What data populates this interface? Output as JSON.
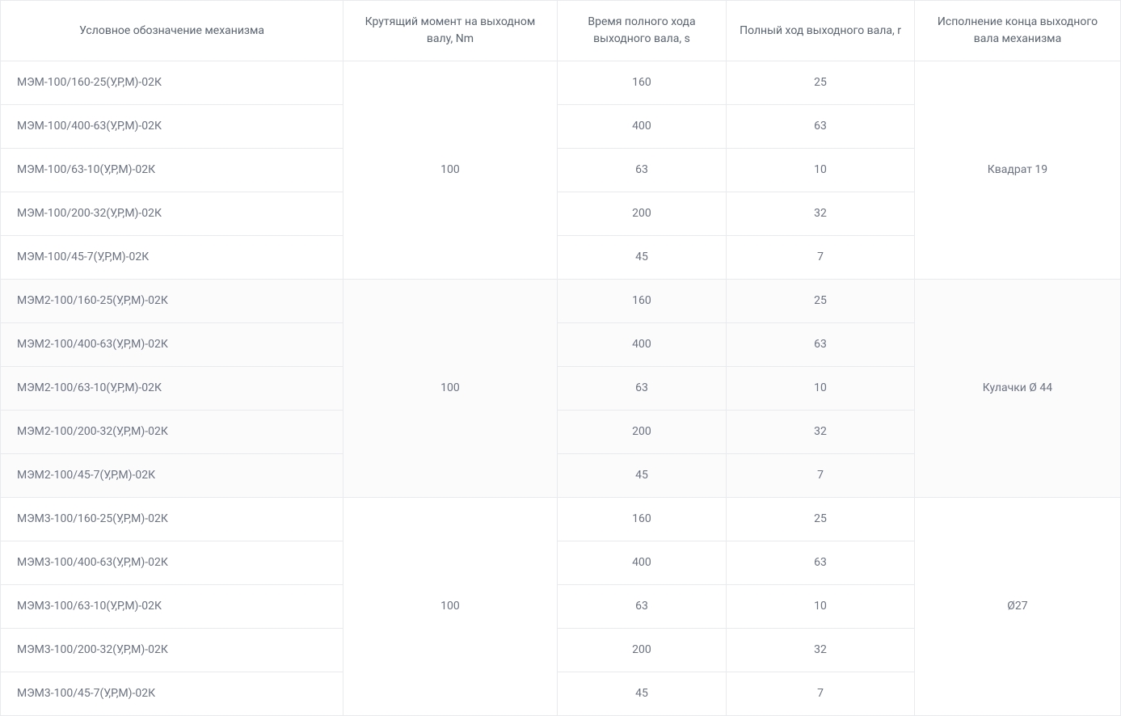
{
  "table": {
    "columns": [
      "Условное обозначение механизма",
      "Крутящий момент на выходном валу, Nm",
      "Время полного хода выходного вала, s",
      "Полный ход выходного вала, r",
      "Исполнение конца выходного вала механизма"
    ],
    "column_widths_pct": [
      30.6,
      19.1,
      15.1,
      16.8,
      18.4
    ],
    "header_fontsize": 14,
    "cell_fontsize": 14,
    "text_color": "#6b7280",
    "header_text_color": "#5a6470",
    "border_color": "#e8eaed",
    "background_color": "#ffffff",
    "alt_background_color": "#fbfbfc",
    "groups": [
      {
        "torque": "100",
        "shaft_end": "Квадрат 19",
        "alt": false,
        "rows": [
          {
            "name": "МЭМ-100/160-25(У,Р,М)-02К",
            "time": "160",
            "stroke": "25"
          },
          {
            "name": "МЭМ-100/400-63(У,Р,М)-02К",
            "time": "400",
            "stroke": "63"
          },
          {
            "name": "МЭМ-100/63-10(У,Р,М)-02К",
            "time": "63",
            "stroke": "10"
          },
          {
            "name": "МЭМ-100/200-32(У,Р,М)-02К",
            "time": "200",
            "stroke": "32"
          },
          {
            "name": "МЭМ-100/45-7(У,Р,М)-02К",
            "time": "45",
            "stroke": "7"
          }
        ]
      },
      {
        "torque": "100",
        "shaft_end": "Кулачки Ø 44",
        "alt": true,
        "rows": [
          {
            "name": "МЭМ2-100/160-25(У,Р,М)-02К",
            "time": "160",
            "stroke": "25"
          },
          {
            "name": "МЭМ2-100/400-63(У,Р,М)-02К",
            "time": "400",
            "stroke": "63"
          },
          {
            "name": "МЭМ2-100/63-10(У,Р,М)-02К",
            "time": "63",
            "stroke": "10"
          },
          {
            "name": "МЭМ2-100/200-32(У,Р,М)-02К",
            "time": "200",
            "stroke": "32"
          },
          {
            "name": "МЭМ2-100/45-7(У,Р,М)-02К",
            "time": "45",
            "stroke": "7"
          }
        ]
      },
      {
        "torque": "100",
        "shaft_end": "Ø27",
        "alt": false,
        "rows": [
          {
            "name": "МЭМ3-100/160-25(У,Р,М)-02К",
            "time": "160",
            "stroke": "25"
          },
          {
            "name": "МЭМ3-100/400-63(У,Р,М)-02К",
            "time": "400",
            "stroke": "63"
          },
          {
            "name": "МЭМ3-100/63-10(У,Р,М)-02К",
            "time": "63",
            "stroke": "10"
          },
          {
            "name": "МЭМ3-100/200-32(У,Р,М)-02К",
            "time": "200",
            "stroke": "32"
          },
          {
            "name": "МЭМ3-100/45-7(У,Р,М)-02К",
            "time": "45",
            "stroke": "7"
          }
        ]
      }
    ]
  }
}
